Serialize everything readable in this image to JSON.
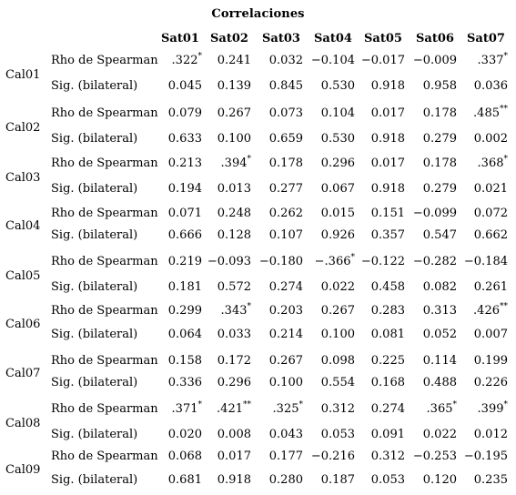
{
  "title": "Correlaciones",
  "columns": [
    "Sat01",
    "Sat02",
    "Sat03",
    "Sat04",
    "Sat05",
    "Sat06",
    "Sat07"
  ],
  "stat_labels": {
    "rho": "Rho de Spearman",
    "sig": "Sig. (bilateral)"
  },
  "rows": [
    {
      "name": "Cal01",
      "rho": [
        ".322*",
        "0.241",
        "0.032",
        "−0.104",
        "−0.017",
        "−0.009",
        ".337*"
      ],
      "sig": [
        "0.045",
        "0.139",
        "0.845",
        "0.530",
        "0.918",
        "0.958",
        "0.036"
      ]
    },
    {
      "name": "Cal02",
      "rho": [
        "0.079",
        "0.267",
        "0.073",
        "0.104",
        "0.017",
        "0.178",
        ".485**"
      ],
      "sig": [
        "0.633",
        "0.100",
        "0.659",
        "0.530",
        "0.918",
        "0.279",
        "0.002"
      ]
    },
    {
      "name": "Cal03",
      "rho": [
        "0.213",
        ".394*",
        "0.178",
        "0.296",
        "0.017",
        "0.178",
        ".368*"
      ],
      "sig": [
        "0.194",
        "0.013",
        "0.277",
        "0.067",
        "0.918",
        "0.279",
        "0.021"
      ]
    },
    {
      "name": "Cal04",
      "rho": [
        "0.071",
        "0.248",
        "0.262",
        "0.015",
        "0.151",
        "−0.099",
        "0.072"
      ],
      "sig": [
        "0.666",
        "0.128",
        "0.107",
        "0.926",
        "0.357",
        "0.547",
        "0.662"
      ]
    },
    {
      "name": "Cal05",
      "rho": [
        "0.219",
        "−0.093",
        "−0.180",
        "−.366*",
        "−0.122",
        "−0.282",
        "−0.184"
      ],
      "sig": [
        "0.181",
        "0.572",
        "0.274",
        "0.022",
        "0.458",
        "0.082",
        "0.261"
      ]
    },
    {
      "name": "Cal06",
      "rho": [
        "0.299",
        ".343*",
        "0.203",
        "0.267",
        "0.283",
        "0.313",
        ".426**"
      ],
      "sig": [
        "0.064",
        "0.033",
        "0.214",
        "0.100",
        "0.081",
        "0.052",
        "0.007"
      ]
    },
    {
      "name": "Cal07",
      "rho": [
        "0.158",
        "0.172",
        "0.267",
        "0.098",
        "0.225",
        "0.114",
        "0.199"
      ],
      "sig": [
        "0.336",
        "0.296",
        "0.100",
        "0.554",
        "0.168",
        "0.488",
        "0.226"
      ]
    },
    {
      "name": "Cal08",
      "rho": [
        ".371*",
        ".421**",
        ".325*",
        "0.312",
        "0.274",
        ".365*",
        ".399*"
      ],
      "sig": [
        "0.020",
        "0.008",
        "0.043",
        "0.053",
        "0.091",
        "0.022",
        "0.012"
      ]
    },
    {
      "name": "Cal09",
      "rho": [
        "0.068",
        "0.017",
        "0.177",
        "−0.216",
        "0.312",
        "−0.253",
        "−0.195"
      ],
      "sig": [
        "0.681",
        "0.918",
        "0.280",
        "0.187",
        "0.053",
        "0.120",
        "0.235"
      ]
    }
  ]
}
